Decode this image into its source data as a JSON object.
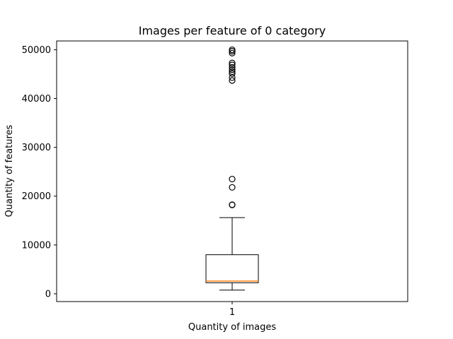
{
  "chart_data": {
    "type": "box",
    "title": "Images per feature of 0 category",
    "xlabel": "Quantity of images",
    "ylabel": "Quantity of features",
    "categories": [
      "1"
    ],
    "ylim": [
      -1600,
      51800
    ],
    "yticks": [
      0,
      10000,
      20000,
      30000,
      40000,
      50000
    ],
    "yticklabels": [
      "0",
      "10000",
      "20000",
      "30000",
      "40000",
      "50000"
    ],
    "box": {
      "whisker_low": 750,
      "q1": 2250,
      "median": 2600,
      "q3": 8000,
      "whisker_high": 15600
    },
    "outliers": [
      18200,
      18250,
      21800,
      23500,
      43700,
      44300,
      45100,
      45500,
      45900,
      46400,
      46900,
      47300,
      49300,
      49700,
      50000
    ],
    "colors": {
      "box": "#000000",
      "median": "#ff7f0e",
      "background": "#ffffff"
    },
    "grid": false
  }
}
